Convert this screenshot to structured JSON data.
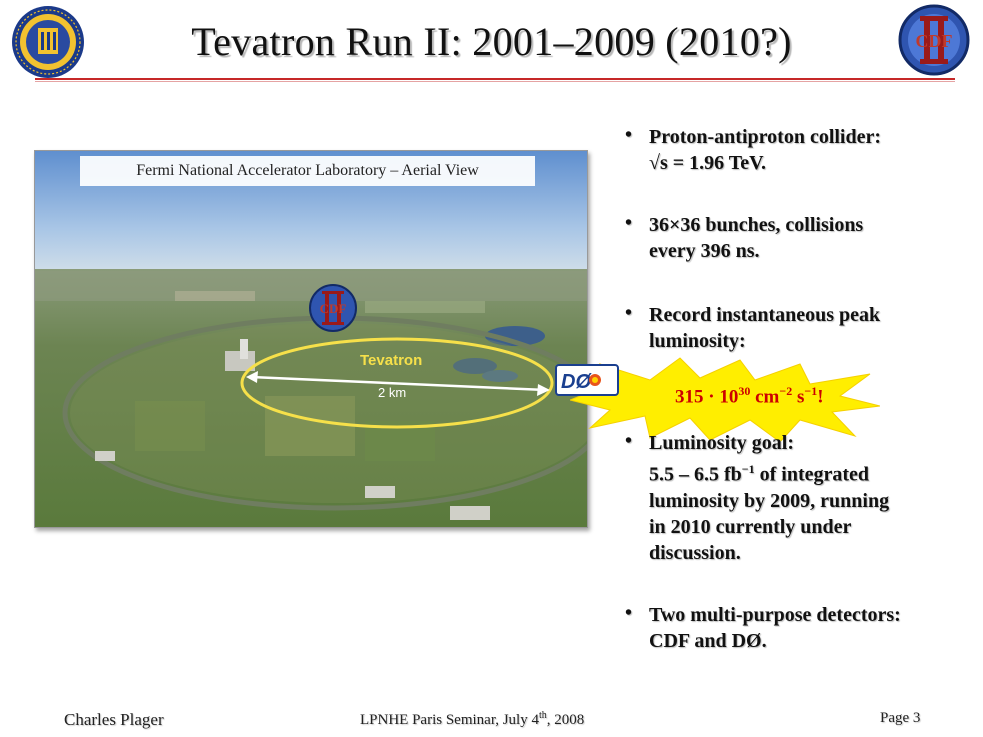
{
  "title": "Tevatron Run II: 2001–2009 (2010?)",
  "photo": {
    "caption": "Fermi National Accelerator Laboratory – Aerial View",
    "ring_label": "Tevatron",
    "distance_label": "2 km"
  },
  "logos": {
    "cdf_text": "CDF",
    "run_numeral": "II",
    "d0_text": "DØ"
  },
  "bullets": [
    {
      "lines": [
        "Proton-antiproton collider:",
        "√s = 1.96 TeV."
      ]
    },
    {
      "lines": [
        "36×36 bunches, collisions",
        "every 396 ns."
      ]
    },
    {
      "lines": [
        "Record instantaneous peak",
        "luminosity:"
      ]
    },
    {
      "lines": [
        "Luminosity goal:",
        "5.5 – 6.5 fb",
        "luminosity by 2009, running",
        "in 2010 currently under",
        "discussion."
      ],
      "line2_sup": "−1",
      "line2_rest": " of integrated"
    },
    {
      "lines": [
        "Two multi-purpose detectors:",
        "CDF and DØ."
      ]
    }
  ],
  "bullet_glyph": "•",
  "luminosity_record": {
    "prefix": "315 · 10",
    "exp1": "30",
    "mid": " cm",
    "exp2": "−2",
    "mid2": " s",
    "exp3": "−1",
    "suffix": "!"
  },
  "footer": {
    "author": "Charles Plager",
    "event_prefix": "LPNHE Paris Seminar, July 4",
    "event_sup": "th",
    "event_suffix": ", 2008",
    "page": "Page 3"
  },
  "colors": {
    "title_rule": "#c62828",
    "highlight_text": "#cc0000",
    "burst": "#ffee00",
    "ring": "#f6e04a"
  }
}
